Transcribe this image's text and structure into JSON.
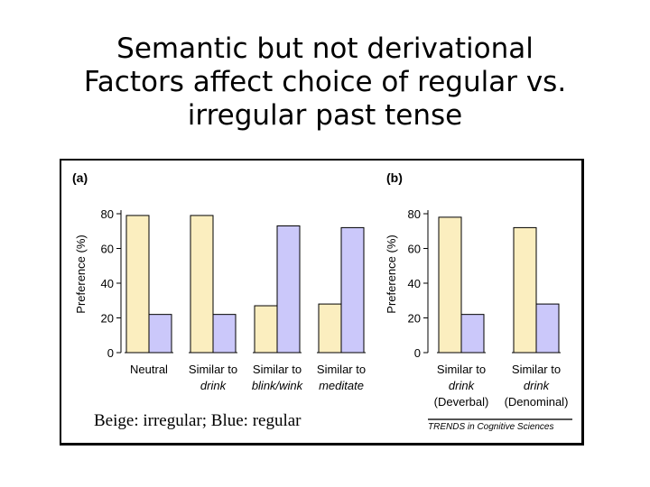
{
  "slide": {
    "title_lines": [
      "Semantic but not derivational",
      "Factors affect choice of regular vs.",
      "irregular past tense"
    ],
    "caption": "Beige: irregular; Blue: regular",
    "source": "TRENDS in Cognitive Sciences"
  },
  "colors": {
    "irregular": "#fbeebf",
    "regular": "#cbc8fa",
    "axis": "#000000"
  },
  "chart_data": [
    {
      "type": "bar",
      "panel_label": "(a)",
      "ylabel": "Preference (%)",
      "ylim": [
        0,
        80
      ],
      "yticks": [
        0,
        20,
        40,
        60,
        80
      ],
      "categories": [
        {
          "lines": [
            "Neutral"
          ]
        },
        {
          "lines": [
            "Similar to",
            "drink"
          ]
        },
        {
          "lines": [
            "Similar to",
            "blink/wink"
          ]
        },
        {
          "lines": [
            "Similar to",
            "meditate"
          ]
        }
      ],
      "series": [
        {
          "values": [
            79,
            79,
            27,
            28
          ]
        },
        {
          "values": [
            22,
            22,
            73,
            72
          ]
        }
      ]
    },
    {
      "type": "bar",
      "panel_label": "(b)",
      "ylabel": "Preference (%)",
      "ylim": [
        0,
        80
      ],
      "yticks": [
        0,
        20,
        40,
        60,
        80
      ],
      "categories": [
        {
          "lines": [
            "Similar to",
            "drink",
            "(Deverbal)"
          ]
        },
        {
          "lines": [
            "Similar to",
            "drink",
            "(Denominal)"
          ]
        }
      ],
      "series": [
        {
          "values": [
            78,
            72
          ]
        },
        {
          "values": [
            22,
            28
          ]
        }
      ]
    }
  ]
}
